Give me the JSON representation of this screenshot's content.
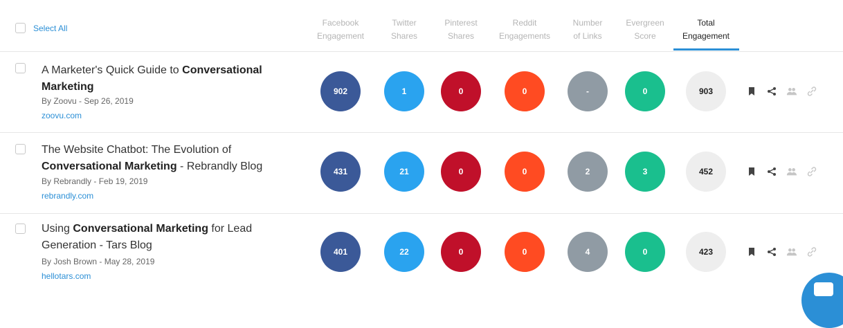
{
  "header": {
    "select_all": "Select All",
    "columns": [
      {
        "key": "facebook",
        "line1": "Facebook",
        "line2": "Engagement"
      },
      {
        "key": "twitter",
        "line1": "Twitter",
        "line2": "Shares"
      },
      {
        "key": "pinterest",
        "line1": "Pinterest",
        "line2": "Shares"
      },
      {
        "key": "reddit",
        "line1": "Reddit",
        "line2": "Engagements"
      },
      {
        "key": "links",
        "line1": "Number",
        "line2": "of Links"
      },
      {
        "key": "evergreen",
        "line1": "Evergreen",
        "line2": "Score"
      },
      {
        "key": "total",
        "line1": "Total",
        "line2": "Engagement"
      }
    ]
  },
  "rows": [
    {
      "title_pre": "A Marketer's Quick Guide to ",
      "title_bold": "Conversational Marketing",
      "title_post": "",
      "byline": "By Zoovu - Sep 26, 2019",
      "domain": "zoovu.com",
      "facebook": "902",
      "twitter": "1",
      "pinterest": "0",
      "reddit": "0",
      "links": "-",
      "evergreen": "0",
      "total": "903"
    },
    {
      "title_pre": "The Website Chatbot: The Evolution of ",
      "title_bold": "Conversational Marketing",
      "title_post": " - Rebrandly Blog",
      "byline": "By Rebrandly - Feb 19, 2019",
      "domain": "rebrandly.com",
      "facebook": "431",
      "twitter": "21",
      "pinterest": "0",
      "reddit": "0",
      "links": "2",
      "evergreen": "3",
      "total": "452"
    },
    {
      "title_pre": "Using ",
      "title_bold": "Conversational Marketing",
      "title_post": " for Lead Generation - Tars Blog",
      "byline": "By Josh Brown - May 28, 2019",
      "domain": "hellotars.com",
      "facebook": "401",
      "twitter": "22",
      "pinterest": "0",
      "reddit": "0",
      "links": "4",
      "evergreen": "0",
      "total": "423"
    }
  ],
  "icons": [
    "bookmark-icon",
    "share-icon",
    "users-icon",
    "link-icon",
    "chat-icon"
  ]
}
